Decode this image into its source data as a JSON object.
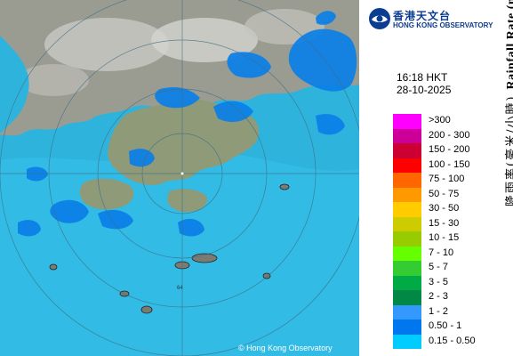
{
  "logo": {
    "name_zh": "香港天文台",
    "name_en": "HONG KONG OBSERVATORY"
  },
  "timestamp": {
    "time": "16:18 HKT",
    "date": "28-10-2025"
  },
  "legend": {
    "title_zh": "降雨率(毫米/小時)",
    "title_en": "Rainfall Rate (mm/h)",
    "items": [
      {
        "label": ">300",
        "color": "#ff00ff"
      },
      {
        "label": "200 - 300",
        "color": "#cc0099"
      },
      {
        "label": "150 - 200",
        "color": "#cc0033"
      },
      {
        "label": "100 - 150",
        "color": "#ff0000"
      },
      {
        "label": "75 - 100",
        "color": "#ff6600"
      },
      {
        "label": "50 - 75",
        "color": "#ff9900"
      },
      {
        "label": "30 - 50",
        "color": "#ffcc00"
      },
      {
        "label": "15 - 30",
        "color": "#cccc00"
      },
      {
        "label": "10 - 15",
        "color": "#99cc00"
      },
      {
        "label": "7 - 10",
        "color": "#66ff00"
      },
      {
        "label": "5 - 7",
        "color": "#33cc33"
      },
      {
        "label": "3 - 5",
        "color": "#00aa44"
      },
      {
        "label": "2 - 3",
        "color": "#008844"
      },
      {
        "label": "1 - 2",
        "color": "#3399ff"
      },
      {
        "label": "0.50 - 1",
        "color": "#0077ee"
      },
      {
        "label": "0.15 - 0.50",
        "color": "#00ccff"
      }
    ]
  },
  "map": {
    "range_ring_label": "64",
    "sea_color": "#2eb4dc",
    "land_color": "#9a9c92",
    "rain_color": "#0a7fe8"
  },
  "copyright": "© Hong Kong Observatory"
}
